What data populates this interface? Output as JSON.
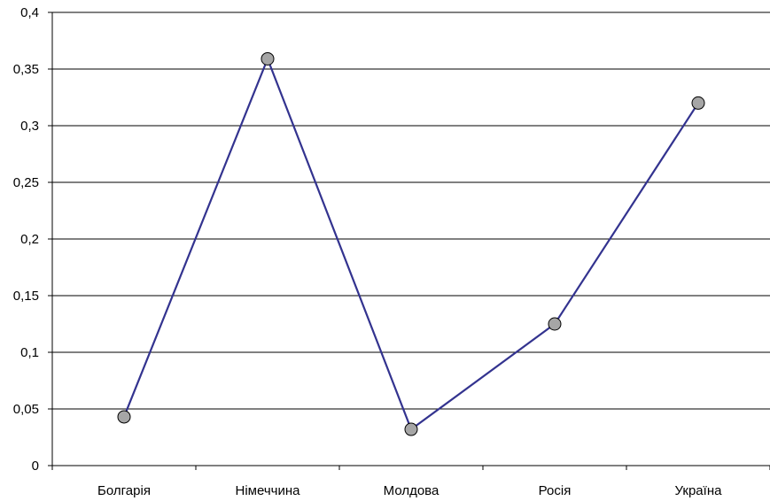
{
  "chart_data": {
    "type": "line",
    "title": "",
    "xlabel": "",
    "ylabel": "",
    "categories": [
      "Болгарія",
      "Німеччина",
      "Молдова",
      "Росія",
      "Україна"
    ],
    "series": [
      {
        "values": [
          0.043,
          0.359,
          0.032,
          0.125,
          0.32
        ]
      }
    ],
    "ylim": [
      0,
      0.4
    ],
    "yticks": [
      0,
      0.05,
      0.1,
      0.15,
      0.2,
      0.25,
      0.3,
      0.35,
      0.4
    ],
    "ytick_labels": [
      "0",
      "0,05",
      "0,1",
      "0,15",
      "0,2",
      "0,25",
      "0,3",
      "0,35",
      "0,4"
    ],
    "grid": true,
    "legend": "none",
    "colors": {
      "line": "#33338f",
      "marker_fill": "#a6a6a6",
      "marker_stroke": "#000000",
      "grid": "#000000",
      "axis": "#000000"
    }
  }
}
